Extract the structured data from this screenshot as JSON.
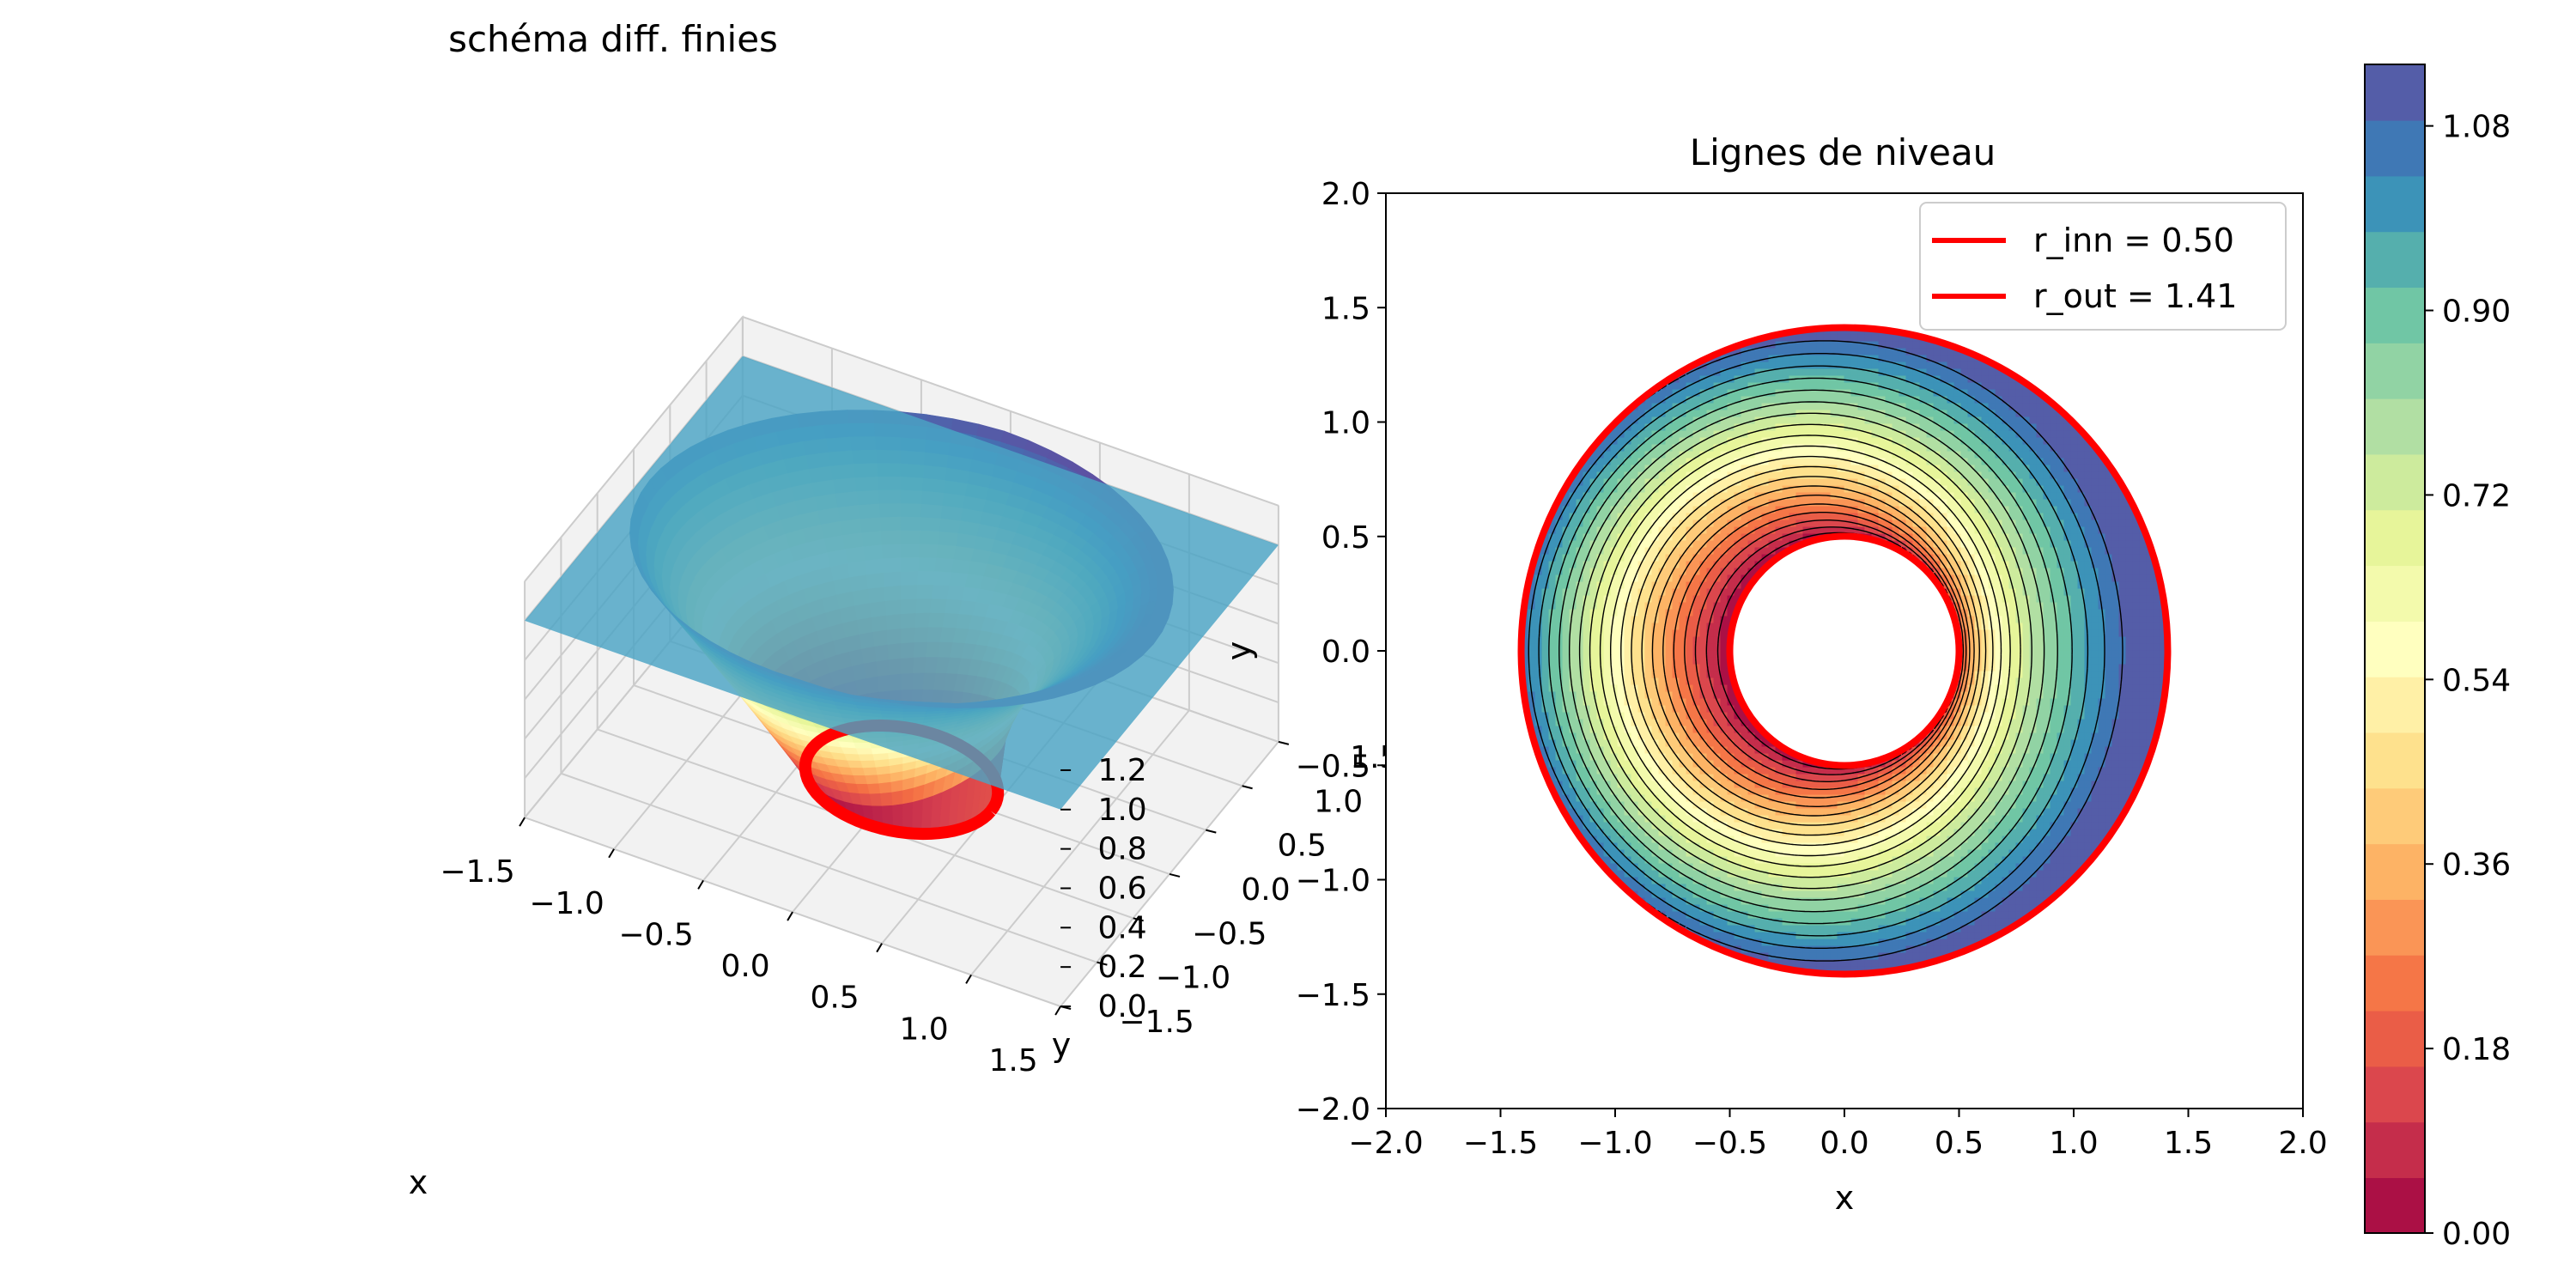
{
  "colors": {
    "boundary": "#ff0000",
    "spectral": [
      "#9e0142",
      "#d53e4f",
      "#f46d43",
      "#fdae61",
      "#fee08b",
      "#ffffbf",
      "#e6f598",
      "#abdda4",
      "#66c2a5",
      "#3288bd",
      "#5e4fa2"
    ],
    "plane": "#4aa3c4",
    "pane": "#f2f2f2",
    "grid": "#cccccc"
  },
  "chart_data": [
    {
      "type": "surface",
      "title": "schéma diff. finies",
      "xlabel": "x",
      "ylabel": "y",
      "zlabel": "",
      "x_ticks": [
        "−1.5",
        "−1.0",
        "−0.5",
        "0.0",
        "0.5",
        "1.0",
        "1.5"
      ],
      "y_ticks": [
        "−1.5",
        "−1.0",
        "−0.5",
        "0.0",
        "0.5",
        "1.0",
        "1.5"
      ],
      "z_ticks": [
        "0.0",
        "0.2",
        "0.4",
        "0.6",
        "0.8",
        "1.0",
        "1.2"
      ],
      "xlim": [
        -1.5,
        1.5
      ],
      "ylim": [
        -1.5,
        1.5
      ],
      "zlim": [
        0.0,
        1.2
      ],
      "plane_z": 1.0,
      "r_inner": 0.5,
      "r_outer": 1.41,
      "colormap": "Spectral"
    },
    {
      "type": "contour",
      "title": "Lignes de niveau",
      "xlabel": "x",
      "ylabel": "y",
      "xlim": [
        -2.0,
        2.0
      ],
      "ylim": [
        -2.0,
        2.0
      ],
      "x_ticks": [
        "−2.0",
        "−1.5",
        "−1.0",
        "−0.5",
        "0.0",
        "0.5",
        "1.0",
        "1.5",
        "2.0"
      ],
      "y_ticks": [
        "−2.0",
        "−1.5",
        "−1.0",
        "−0.5",
        "0.0",
        "0.5",
        "1.0",
        "1.5",
        "2.0"
      ],
      "legend_position": "top-right",
      "legend": [
        {
          "label": "r_inn =  0.50",
          "color": "#ff0000"
        },
        {
          "label": "r_out =  1.41",
          "color": "#ff0000"
        }
      ],
      "r_inner": 0.5,
      "r_outer": 1.41,
      "levels": 21,
      "colorbar": {
        "min": 0.0,
        "max": 1.14,
        "ticks": [
          0.0,
          0.18,
          0.36,
          0.54,
          0.72,
          0.9,
          1.08
        ],
        "tick_labels": [
          "0.00",
          "0.18",
          "0.36",
          "0.54",
          "0.72",
          "0.90",
          "1.08"
        ]
      }
    }
  ]
}
